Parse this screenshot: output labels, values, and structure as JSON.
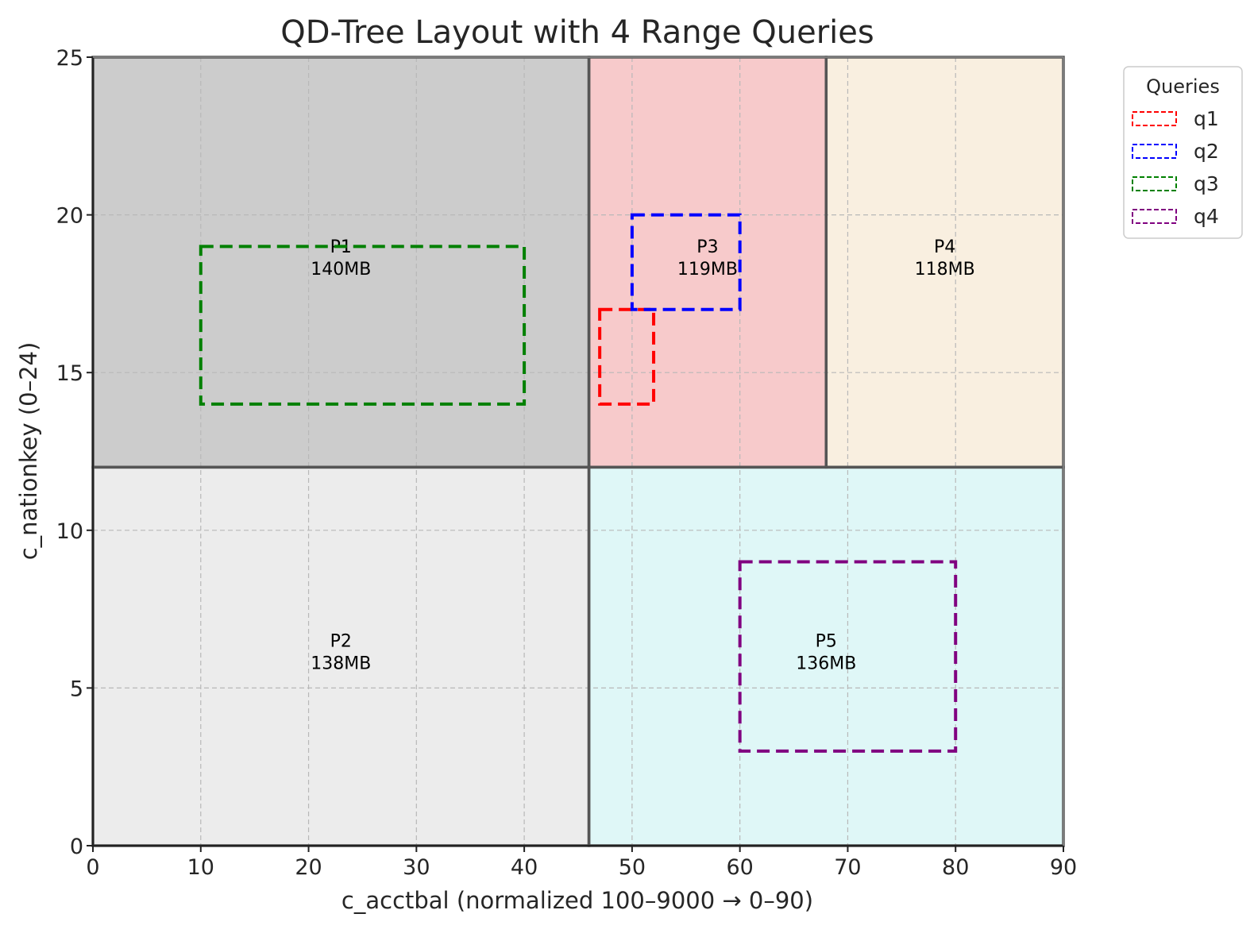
{
  "chart_data": {
    "type": "rectangles",
    "title": "QD-Tree Layout with 4 Range Queries",
    "xlabel": "c_acctbal (normalized 100–9000 → 0–90)",
    "ylabel": "c_nationkey (0–24)",
    "xlim": [
      0,
      90
    ],
    "ylim": [
      0,
      25
    ],
    "xticks": [
      0,
      10,
      20,
      30,
      40,
      50,
      60,
      70,
      80,
      90
    ],
    "yticks": [
      0,
      5,
      10,
      15,
      20,
      25
    ],
    "grid": true,
    "partitions": [
      {
        "name": "P1",
        "size": "140MB",
        "x0": 0,
        "x1": 46,
        "y0": 12,
        "y1": 25,
        "color": "#cccccc"
      },
      {
        "name": "P2",
        "size": "138MB",
        "x0": 0,
        "x1": 46,
        "y0": 0,
        "y1": 12,
        "color": "#ececec"
      },
      {
        "name": "P3",
        "size": "119MB",
        "x0": 46,
        "x1": 68,
        "y0": 12,
        "y1": 25,
        "color": "#f7cacb"
      },
      {
        "name": "P4",
        "size": "118MB",
        "x0": 68,
        "x1": 90,
        "y0": 12,
        "y1": 25,
        "color": "#f9efe0"
      },
      {
        "name": "P5",
        "size": "136MB",
        "x0": 46,
        "x1": 90,
        "y0": 0,
        "y1": 12,
        "color": "#dff7f7"
      }
    ],
    "queries": [
      {
        "name": "q1",
        "x0": 47,
        "x1": 52,
        "y0": 14,
        "y1": 17,
        "color": "#ff0000"
      },
      {
        "name": "q2",
        "x0": 50,
        "x1": 60,
        "y0": 17,
        "y1": 20,
        "color": "#0000ff"
      },
      {
        "name": "q3",
        "x0": 10,
        "x1": 40,
        "y0": 14,
        "y1": 19,
        "color": "#008000"
      },
      {
        "name": "q4",
        "x0": 60,
        "x1": 80,
        "y0": 3,
        "y1": 9,
        "color": "#800080"
      }
    ],
    "legend": {
      "title": "Queries",
      "placement": "outside-top-right"
    }
  }
}
